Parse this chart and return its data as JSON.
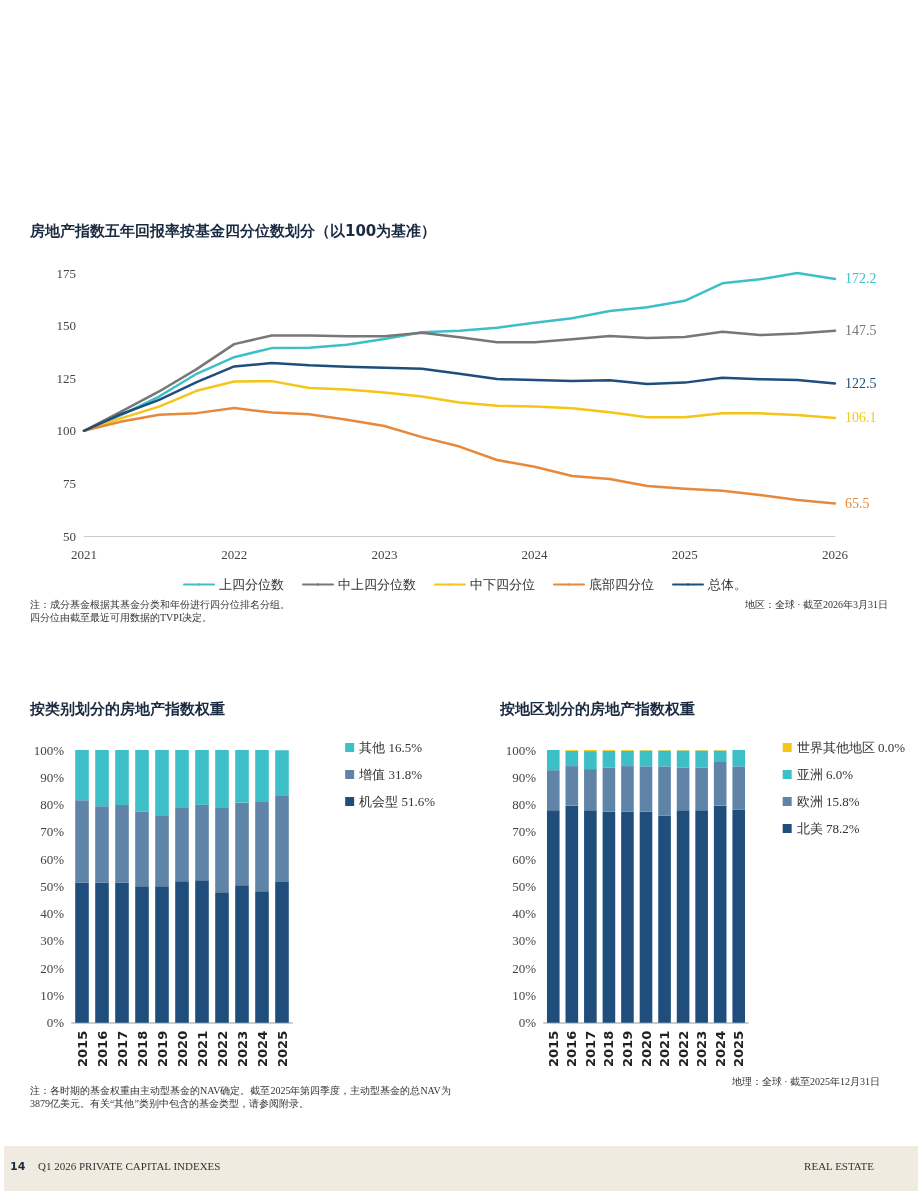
{
  "chart_data": [
    {
      "type": "line",
      "title": "房地产指数五年回报率按基金四分位数划分（以100为基准）",
      "categories": [
        "2021",
        null,
        null,
        null,
        "2022",
        null,
        null,
        null,
        "2023",
        null,
        null,
        null,
        "2024",
        null,
        null,
        null,
        "2025",
        null,
        null,
        null,
        "2026"
      ],
      "series": [
        {
          "name": "上四分位数",
          "color": "#3dbfc8",
          "values": [
            100,
            107.6,
            116.3,
            127.1,
            135.0,
            139.3,
            139.5,
            140.9,
            143.6,
            146.8,
            147.5,
            149.0,
            151.4,
            153.5,
            156.9,
            158.7,
            161.8,
            170.1,
            172.0,
            175.0,
            172.2
          ],
          "value_labels": [
            null,
            null,
            null,
            null,
            null,
            null,
            null,
            null,
            null,
            null,
            null,
            null,
            null,
            null,
            null,
            null,
            null,
            null,
            null,
            null,
            "172.2"
          ]
        },
        {
          "name": "中上四分位数",
          "color": "#777777",
          "values": [
            100,
            109.2,
            118.7,
            129.3,
            141.2,
            145.3,
            145.3,
            144.9,
            144.9,
            146.6,
            144.5,
            142.1,
            142.1,
            143.5,
            145.1,
            144.1,
            144.6,
            147.1,
            145.5,
            146.2,
            147.5
          ],
          "value_labels": [
            null,
            null,
            null,
            null,
            null,
            null,
            null,
            null,
            null,
            null,
            null,
            null,
            null,
            null,
            null,
            null,
            null,
            null,
            null,
            null,
            "147.5"
          ]
        },
        {
          "name": "中下四分位",
          "color": "#f5c518",
          "values": [
            100,
            106.0,
            111.5,
            119.0,
            123.4,
            123.6,
            120.3,
            119.6,
            118.2,
            116.3,
            113.5,
            111.9,
            111.5,
            110.7,
            108.8,
            106.4,
            106.4,
            108.3,
            108.3,
            107.5,
            106.1
          ],
          "value_labels": [
            null,
            null,
            null,
            null,
            null,
            null,
            null,
            null,
            null,
            null,
            null,
            null,
            null,
            null,
            null,
            null,
            null,
            null,
            null,
            null,
            "106.1"
          ]
        },
        {
          "name": "底部四分位",
          "color": "#e8883a",
          "values": [
            100,
            104.4,
            107.6,
            108.4,
            110.8,
            108.7,
            107.9,
            105.2,
            102.3,
            97.0,
            92.5,
            86.1,
            82.9,
            78.5,
            77.1,
            73.8,
            72.5,
            71.5,
            69.5,
            67.1,
            65.5
          ],
          "value_labels": [
            null,
            null,
            null,
            null,
            null,
            null,
            null,
            null,
            null,
            null,
            null,
            null,
            null,
            null,
            null,
            null,
            null,
            null,
            null,
            null,
            "65.5"
          ]
        },
        {
          "name": "总体。",
          "color": "#1f4e7d",
          "values": [
            100,
            108.0,
            114.7,
            123.1,
            130.6,
            132.2,
            131.1,
            130.4,
            130.0,
            129.5,
            127.1,
            124.6,
            124.1,
            123.7,
            124.0,
            122.2,
            122.9,
            125.2,
            124.5,
            124.1,
            122.5
          ],
          "value_labels": [
            null,
            null,
            null,
            null,
            null,
            null,
            null,
            null,
            null,
            null,
            null,
            null,
            null,
            null,
            null,
            null,
            null,
            null,
            null,
            null,
            "122.5"
          ]
        }
      ],
      "ylim": [
        50,
        175
      ],
      "yticks": [
        50,
        75,
        100,
        125,
        150,
        175
      ],
      "grid": false,
      "legend": "bottom",
      "marker": "none",
      "annotations": [
        "注：成分基金根据其基金分类和年份进行四分位排名分组。",
        "四分位由截至最近可用数据的TVPI决定。",
        "地区：全球 · 截至2026年3月31日",
        "14",
        "Q1 2026 PRIVATE CAPITAL INDEXES",
        "REAL ESTATE"
      ]
    },
    {
      "type": "bar",
      "title": "按类别划分的房地产指数权重",
      "stacked": true,
      "categories": [
        "2015",
        "2016",
        "2017",
        "2018",
        "2019",
        "2020",
        "2021",
        "2022",
        "2023",
        "2024",
        "2025"
      ],
      "series": [
        {
          "name": "机会型 51.6%",
          "color": "#1f4e7d",
          "values": [
            51.4,
            51.4,
            51.4,
            50.1,
            50.1,
            51.9,
            52.3,
            47.9,
            50.4,
            48.2,
            51.6
          ]
        },
        {
          "name": "增值 31.8%",
          "color": "#5f84a8",
          "values": [
            30.2,
            28.0,
            28.4,
            27.3,
            26.0,
            26.8,
            27.6,
            30.8,
            30.3,
            33.0,
            31.8
          ]
        },
        {
          "name": "其他 16.5%",
          "color": "#3dbfc8",
          "values": [
            18.4,
            20.6,
            20.2,
            22.6,
            23.9,
            21.3,
            20.1,
            21.3,
            19.3,
            18.8,
            16.5
          ]
        }
      ],
      "ylim": [
        0,
        100
      ],
      "yticks": [
        {
          "value": 0,
          "label": "0%"
        },
        {
          "value": 10,
          "label": "10%"
        },
        {
          "value": 20,
          "label": "20%"
        },
        {
          "value": 30,
          "label": "30%"
        },
        {
          "value": 40,
          "label": "40%"
        },
        {
          "value": 50,
          "label": "50%"
        },
        {
          "value": 60,
          "label": "60%"
        },
        {
          "value": 70,
          "label": "70%"
        },
        {
          "value": 80,
          "label": "80%"
        },
        {
          "value": 90,
          "label": "90%"
        },
        {
          "value": 100,
          "label": "100%"
        }
      ],
      "grid": false,
      "legend": "right",
      "annotations": [
        "注：各时期的基金权重由主动型基金的NAV确定。截至2025年第四季度，主动型基金的总NAV为3879亿美元。有关“其他”类别中包含的基金类型，请参阅附录。"
      ]
    },
    {
      "type": "bar",
      "title": "按地区划分的房地产指数权重",
      "stacked": true,
      "categories": [
        "2015",
        "2016",
        "2017",
        "2018",
        "2019",
        "2020",
        "2021",
        "2022",
        "2023",
        "2024",
        "2025"
      ],
      "series": [
        {
          "name": "北美 78.2%",
          "color": "#1f4e7d",
          "values": [
            77.9,
            79.6,
            77.9,
            77.5,
            77.5,
            77.5,
            75.9,
            77.9,
            77.9,
            79.6,
            78.2
          ]
        },
        {
          "name": "欧洲 15.8%",
          "color": "#5f84a8",
          "values": [
            14.7,
            14.5,
            15.1,
            16.1,
            16.6,
            16.5,
            18.1,
            15.7,
            15.7,
            16.0,
            15.8
          ]
        },
        {
          "name": "亚洲 6.0%",
          "color": "#3dbfc8",
          "values": [
            7.4,
            5.6,
            6.6,
            6.1,
            5.6,
            5.8,
            5.8,
            6.2,
            6.2,
            4.2,
            6.0
          ]
        },
        {
          "name": "世界其他地区 0.0%",
          "color": "#f5c518",
          "values": [
            0.0,
            0.3,
            0.4,
            0.3,
            0.3,
            0.2,
            0.2,
            0.2,
            0.2,
            0.2,
            0.0
          ]
        }
      ],
      "ylim": [
        0,
        100
      ],
      "yticks": [
        {
          "value": 0,
          "label": "0%"
        },
        {
          "value": 10,
          "label": "10%"
        },
        {
          "value": 20,
          "label": "20%"
        },
        {
          "value": 30,
          "label": "30%"
        },
        {
          "value": 40,
          "label": "40%"
        },
        {
          "value": 50,
          "label": "50%"
        },
        {
          "value": 60,
          "label": "60%"
        },
        {
          "value": 70,
          "label": "70%"
        },
        {
          "value": 80,
          "label": "80%"
        },
        {
          "value": 90,
          "label": "90%"
        },
        {
          "value": 100,
          "label": "100%"
        }
      ],
      "grid": false,
      "legend": "right",
      "annotations": [
        "地理：全球 · 截至2025年12月31日"
      ]
    }
  ]
}
